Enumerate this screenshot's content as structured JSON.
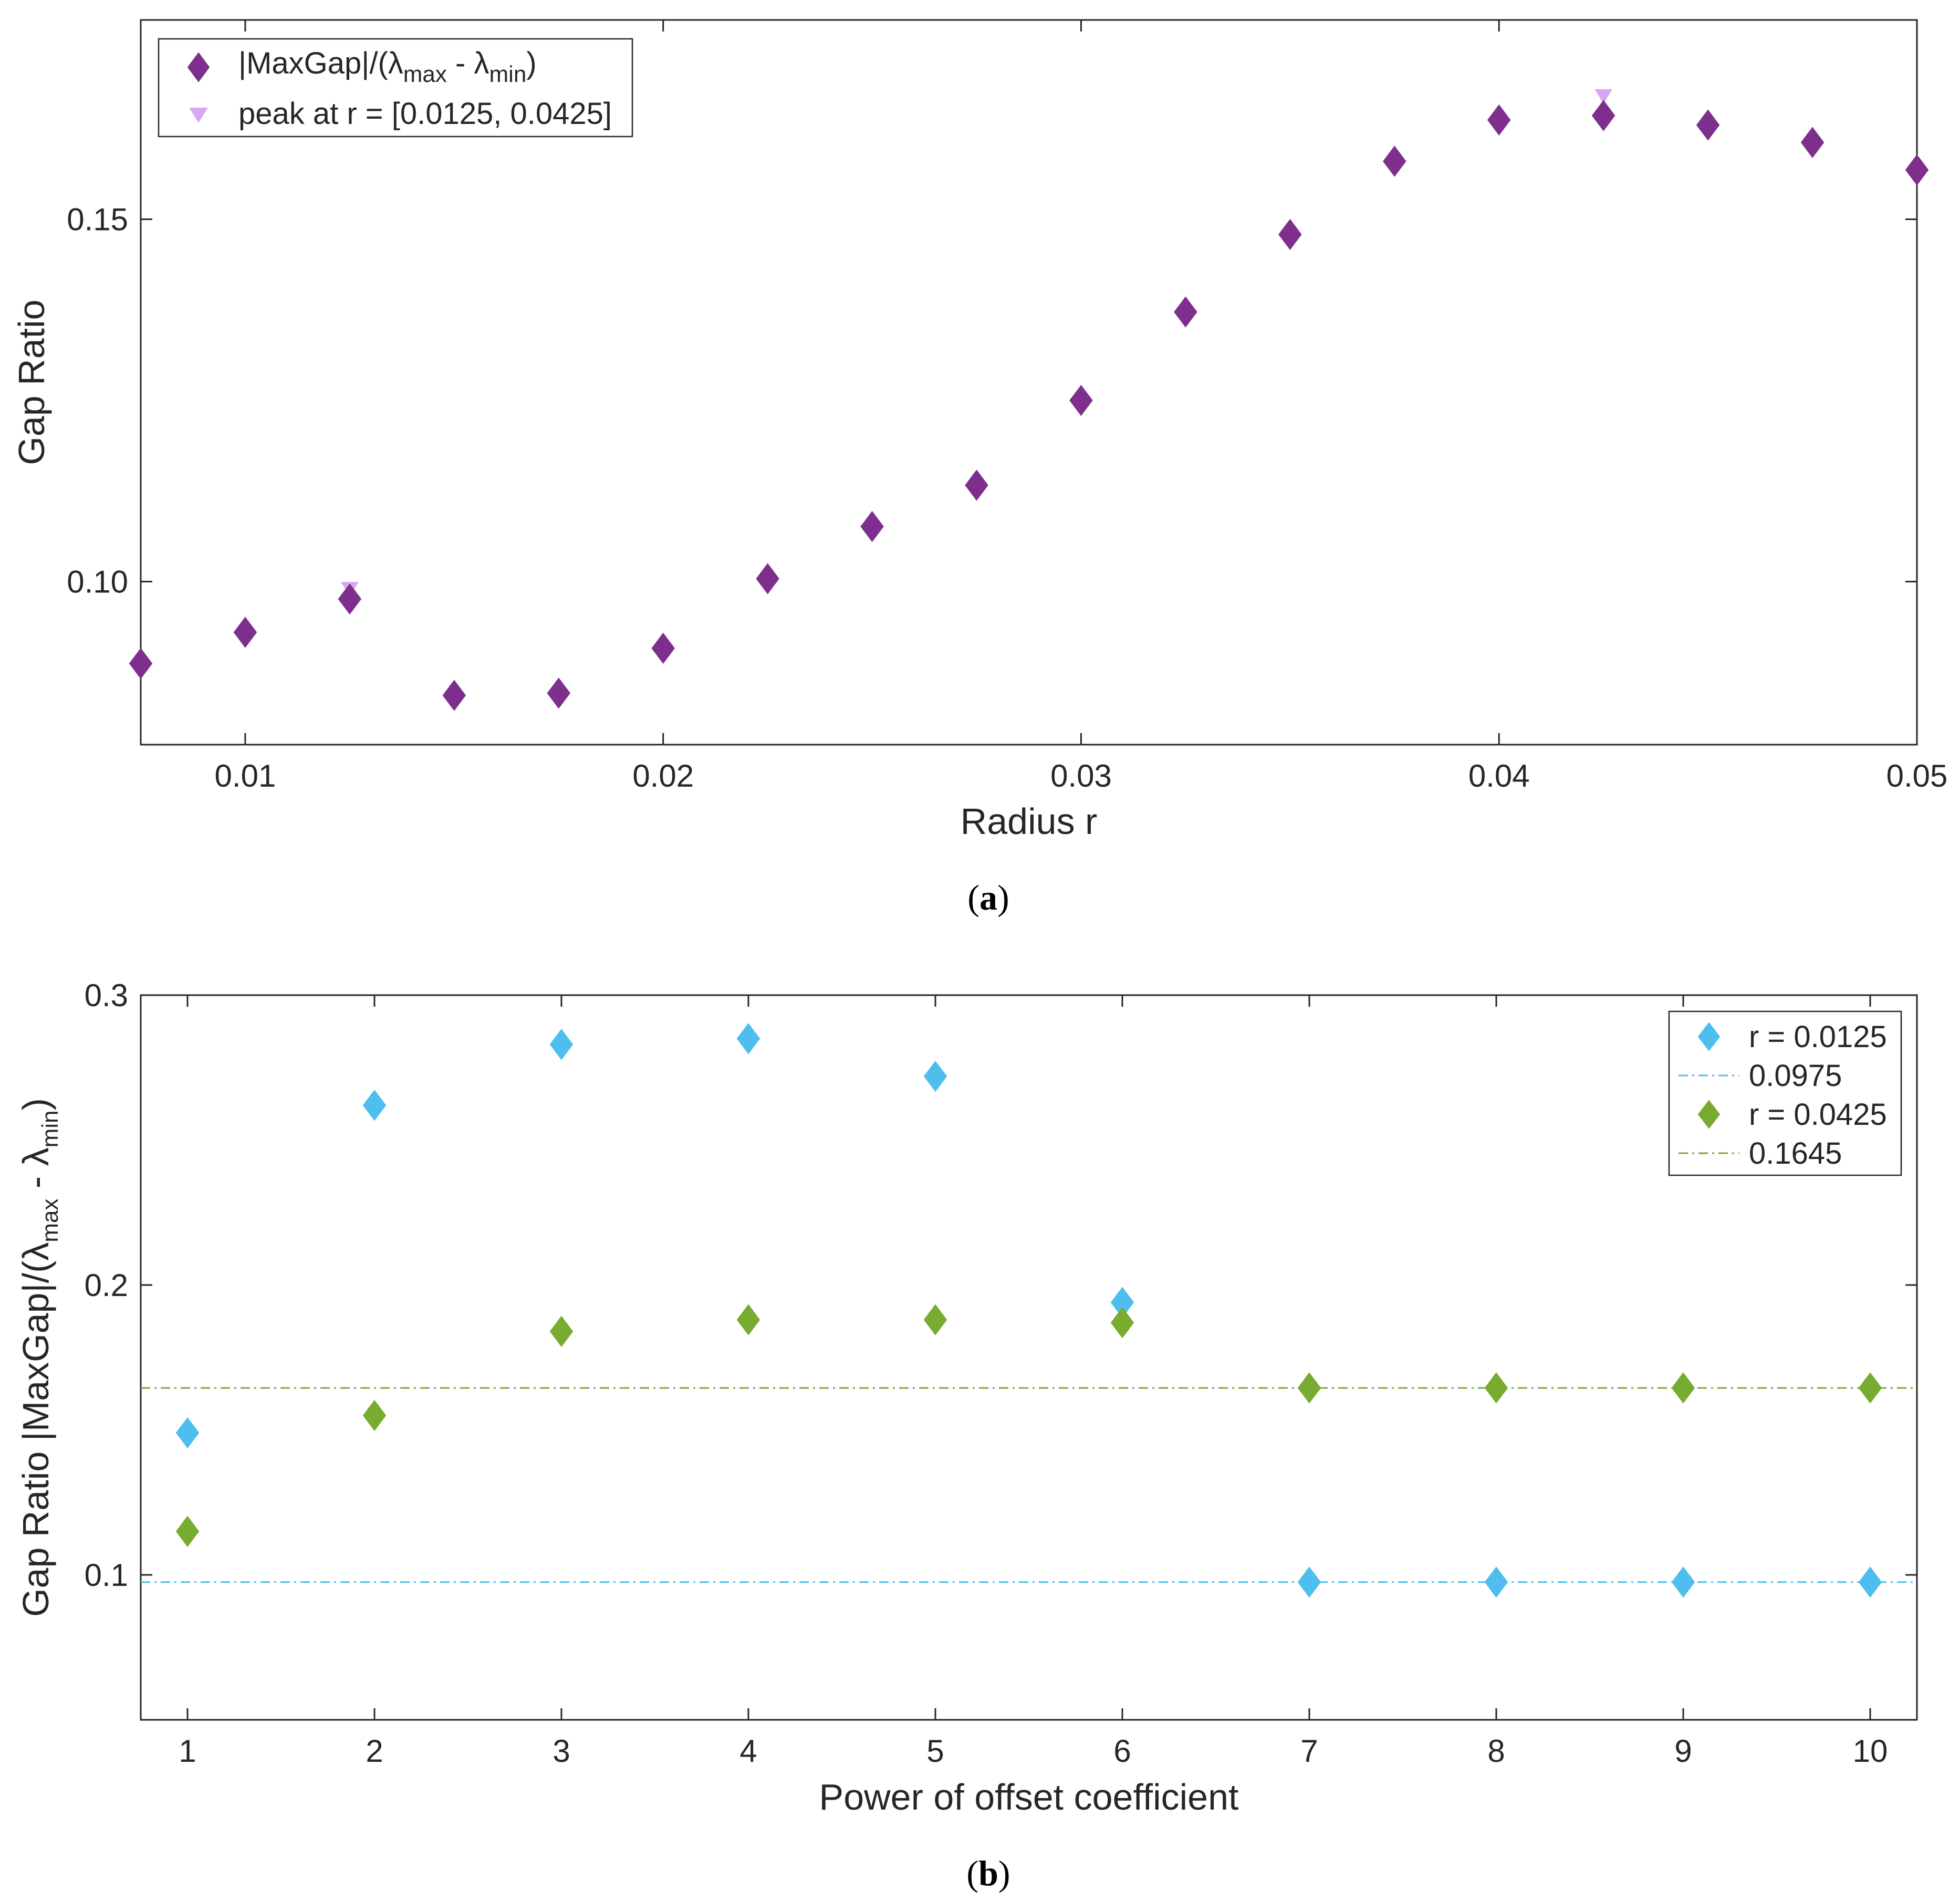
{
  "chart_data": [
    {
      "type": "scatter",
      "xlabel": "Radius r",
      "ylabel": "Gap Ratio",
      "xlim": [
        0.0075,
        0.05
      ],
      "ylim": [
        0.0775,
        0.1775
      ],
      "xticks": [
        0.01,
        0.02,
        0.03,
        0.04,
        0.05
      ],
      "xtick_labels": [
        "0.01",
        "0.02",
        "0.03",
        "0.04",
        "0.05"
      ],
      "yticks": [
        0.1,
        0.15
      ],
      "ytick_labels": [
        "0.10",
        "0.15"
      ],
      "grid": false,
      "legend_position": "top-left",
      "caption": "a",
      "series": [
        {
          "name": "|MaxGap|/(λmax - λmin)",
          "legend_main": "|MaxGap|/(λ",
          "legend_sub1": "max",
          "legend_mid": " - λ",
          "legend_sub2": "min",
          "legend_end": ")",
          "marker": "diamond",
          "color": "#7E2F8E",
          "x": [
            0.0075,
            0.01,
            0.0125,
            0.015,
            0.0175,
            0.02,
            0.0225,
            0.025,
            0.0275,
            0.03,
            0.0325,
            0.035,
            0.0375,
            0.04,
            0.0425,
            0.045,
            0.0475,
            0.05
          ],
          "y": [
            0.0887,
            0.093,
            0.0976,
            0.0843,
            0.0846,
            0.0908,
            0.1004,
            0.1076,
            0.1133,
            0.125,
            0.1372,
            0.1479,
            0.158,
            0.1637,
            0.1643,
            0.163,
            0.1606,
            0.1568
          ]
        },
        {
          "name": "peak at r = [0.0125, 0.0425]",
          "marker": "triangle-down",
          "color": "#D9A6F2",
          "x": [
            0.0125,
            0.0425
          ],
          "y": [
            0.099,
            0.167
          ]
        }
      ]
    },
    {
      "type": "scatter",
      "xlabel": "Power of offset coefficient",
      "ylabel_main": "Gap Ratio |MaxGap|/(λ",
      "ylabel_sub1": "max",
      "ylabel_mid": " - λ",
      "ylabel_sub2": "min",
      "ylabel_end": ")",
      "xlim": [
        0.75,
        10.25
      ],
      "ylim": [
        0.05,
        0.3
      ],
      "xticks": [
        1,
        2,
        3,
        4,
        5,
        6,
        7,
        8,
        9,
        10
      ],
      "xtick_labels": [
        "1",
        "2",
        "3",
        "4",
        "5",
        "6",
        "7",
        "8",
        "9",
        "10"
      ],
      "yticks": [
        0.1,
        0.2,
        0.3
      ],
      "ytick_labels": [
        "0.1",
        "0.2",
        "0.3"
      ],
      "grid": false,
      "legend_position": "top-right",
      "caption": "b",
      "series": [
        {
          "name": "r = 0.0125",
          "marker": "diamond",
          "color": "#4DBEEE",
          "x": [
            1,
            2,
            3,
            4,
            5,
            6,
            7,
            8,
            9,
            10
          ],
          "y": [
            0.149,
            0.262,
            0.283,
            0.285,
            0.272,
            0.194,
            0.0975,
            0.0975,
            0.0975,
            0.0975
          ]
        },
        {
          "name": "0.0975",
          "type": "hline",
          "style": "dash-dot",
          "color": "#4DBEEE",
          "y": 0.0975
        },
        {
          "name": "r = 0.0425",
          "marker": "diamond",
          "color": "#77AC30",
          "x": [
            1,
            2,
            3,
            4,
            5,
            6,
            7,
            8,
            9,
            10
          ],
          "y": [
            0.115,
            0.155,
            0.184,
            0.188,
            0.188,
            0.187,
            0.1645,
            0.1645,
            0.1645,
            0.1645
          ]
        },
        {
          "name": "0.1645",
          "type": "hline",
          "style": "dash-dot",
          "color": "#77AC30",
          "y": 0.1645
        }
      ]
    }
  ]
}
